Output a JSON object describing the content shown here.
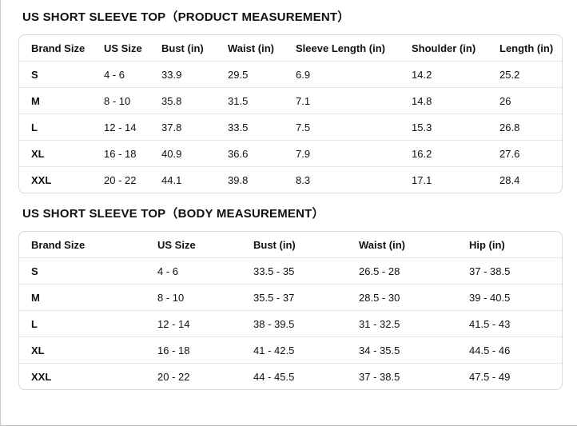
{
  "tables": [
    {
      "title": "US SHORT SLEEVE TOP（PRODUCT MEASUREMENT）",
      "headers": [
        "Brand Size",
        "US Size",
        "Bust (in)",
        "Waist (in)",
        "Sleeve Length (in)",
        "Shoulder (in)",
        "Length (in)"
      ],
      "rows": [
        [
          "S",
          "4 - 6",
          "33.9",
          "29.5",
          "6.9",
          "14.2",
          "25.2"
        ],
        [
          "M",
          "8 - 10",
          "35.8",
          "31.5",
          "7.1",
          "14.8",
          "26"
        ],
        [
          "L",
          "12 - 14",
          "37.8",
          "33.5",
          "7.5",
          "15.3",
          "26.8"
        ],
        [
          "XL",
          "16 - 18",
          "40.9",
          "36.6",
          "7.9",
          "16.2",
          "27.6"
        ],
        [
          "XXL",
          "20 - 22",
          "44.1",
          "39.8",
          "8.3",
          "17.1",
          "28.4"
        ]
      ]
    },
    {
      "title": "US SHORT SLEEVE TOP（BODY MEASUREMENT）",
      "headers": [
        "Brand Size",
        "US Size",
        "Bust (in)",
        "Waist (in)",
        "Hip (in)"
      ],
      "rows": [
        [
          "S",
          "4 - 6",
          "33.5 - 35",
          "26.5 - 28",
          "37 - 38.5"
        ],
        [
          "M",
          "8 - 10",
          "35.5 - 37",
          "28.5 - 30",
          "39 - 40.5"
        ],
        [
          "L",
          "12 - 14",
          "38 - 39.5",
          "31 - 32.5",
          "41.5 - 43"
        ],
        [
          "XL",
          "16 - 18",
          "41 - 42.5",
          "34 - 35.5",
          "44.5 - 46"
        ],
        [
          "XXL",
          "20 - 22",
          "44 - 45.5",
          "37 - 38.5",
          "47.5 - 49"
        ]
      ]
    }
  ],
  "colors": {
    "text": "#0f1111",
    "table_border": "#d5d9d9",
    "row_divider": "#e7e7e7",
    "page_edge": "#c9c9c9",
    "background": "#ffffff"
  }
}
